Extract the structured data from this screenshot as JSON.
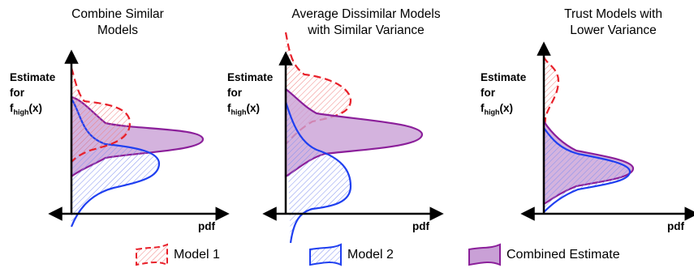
{
  "panels": [
    {
      "title_line1": "Combine Similar",
      "title_line2": "Models",
      "ylabel_line1": "Estimate",
      "ylabel_line2": "for",
      "ylabel_f": "f",
      "ylabel_sub": "high",
      "ylabel_x": "(x)",
      "xlabel": "pdf"
    },
    {
      "title_line1": "Average Dissimilar Models",
      "title_line2": "with Similar Variance",
      "ylabel_line1": "Estimate",
      "ylabel_line2": "for",
      "ylabel_f": "f",
      "ylabel_sub": "high",
      "ylabel_x": "(x)",
      "xlabel": "pdf"
    },
    {
      "title_line1": "Trust Models with",
      "title_line2": "Lower Variance",
      "ylabel_line1": "Estimate",
      "ylabel_line2": "for",
      "ylabel_f": "f",
      "ylabel_sub": "high",
      "ylabel_x": "(x)",
      "xlabel": "pdf"
    }
  ],
  "legend": [
    {
      "label": "Model 1",
      "color": "#e8202a",
      "style": "dashed-hatched"
    },
    {
      "label": "Model 2",
      "color": "#1f3ff0",
      "style": "solid-hatched"
    },
    {
      "label": "Combined Estimate",
      "color": "#8b1f9a",
      "style": "solid-filled"
    }
  ],
  "colors": {
    "model1": "#e8202a",
    "model2": "#1f3ff0",
    "combined": "#8b1f9a",
    "combined_fill": "#c9a0d6",
    "axis": "#000000"
  }
}
